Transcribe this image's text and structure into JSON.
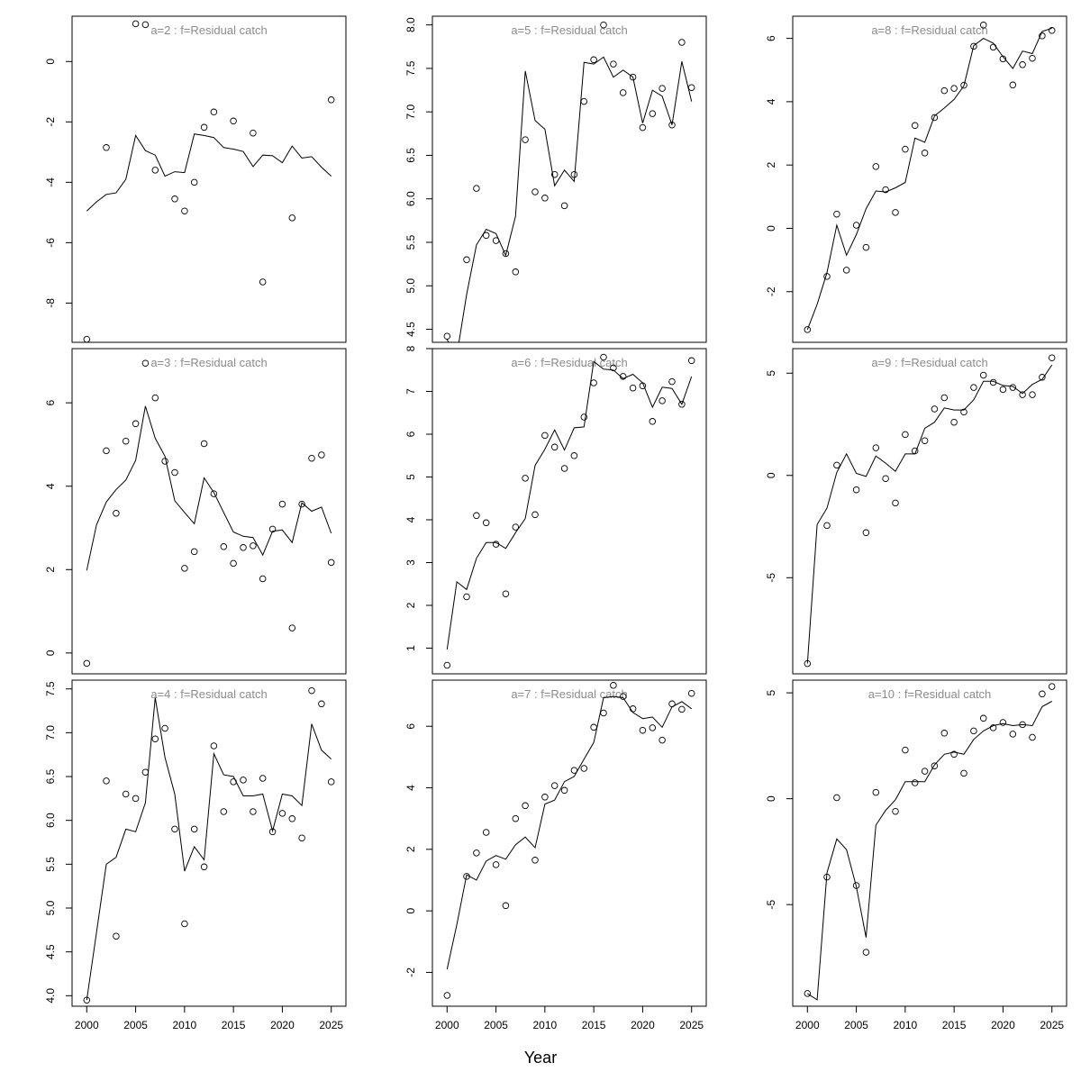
{
  "figure": {
    "xlabel": "Year",
    "x_ticks": [
      2000,
      2005,
      2010,
      2015,
      2020,
      2025
    ]
  },
  "chart_data": [
    {
      "type": "scatter",
      "title": "a=2  :  f=Residual catch",
      "ylim": [
        -9.3,
        1.5
      ],
      "y_ticks": [
        0,
        -2,
        -4,
        -6,
        -8
      ],
      "x": [
        2000,
        2001,
        2002,
        2003,
        2004,
        2005,
        2006,
        2007,
        2008,
        2009,
        2010,
        2011,
        2012,
        2013,
        2014,
        2015,
        2016,
        2017,
        2018,
        2019,
        2020,
        2021,
        2022,
        2023,
        2024,
        2025
      ],
      "series": [
        {
          "type": "points",
          "values": [
            -9.2,
            null,
            -2.85,
            null,
            null,
            1.25,
            1.22,
            -3.6,
            null,
            -4.55,
            -4.95,
            -4.0,
            -2.18,
            -1.67,
            null,
            -1.97,
            null,
            -2.37,
            -7.3,
            null,
            null,
            -5.18,
            null,
            null,
            null,
            -1.27
          ]
        },
        {
          "type": "line",
          "values": [
            -4.95,
            -4.65,
            -4.4,
            -4.35,
            -3.9,
            -2.45,
            -2.95,
            -3.1,
            -3.8,
            -3.65,
            -3.68,
            -2.4,
            -2.45,
            -2.52,
            -2.85,
            -2.9,
            -2.98,
            -3.48,
            -3.1,
            -3.12,
            -3.35,
            -2.8,
            -3.2,
            -3.15,
            -3.5,
            -3.8
          ]
        }
      ]
    },
    {
      "type": "scatter",
      "title": "a=3  :  f=Residual catch",
      "ylim": [
        -0.5,
        7.3
      ],
      "y_ticks": [
        0,
        2,
        4,
        6
      ],
      "x": [
        2000,
        2001,
        2002,
        2003,
        2004,
        2005,
        2006,
        2007,
        2008,
        2009,
        2010,
        2011,
        2012,
        2013,
        2014,
        2015,
        2016,
        2017,
        2018,
        2019,
        2020,
        2021,
        2022,
        2023,
        2024,
        2025
      ],
      "series": [
        {
          "type": "points",
          "values": [
            -0.25,
            null,
            4.85,
            3.35,
            5.08,
            5.5,
            6.95,
            6.12,
            4.6,
            4.33,
            2.03,
            2.43,
            5.02,
            3.82,
            2.55,
            2.15,
            2.53,
            2.57,
            1.78,
            2.97,
            3.57,
            0.6,
            3.57,
            4.67,
            4.75,
            2.17
          ]
        },
        {
          "type": "line",
          "values": [
            1.98,
            3.07,
            3.62,
            3.92,
            4.15,
            4.62,
            5.92,
            5.15,
            4.72,
            3.65,
            3.37,
            3.1,
            4.2,
            3.85,
            3.37,
            2.9,
            2.8,
            2.77,
            2.35,
            2.92,
            2.95,
            2.65,
            3.6,
            3.4,
            3.5,
            2.87
          ]
        }
      ]
    },
    {
      "type": "scatter",
      "title": "a=4  :  f=Residual catch",
      "ylim": [
        3.88,
        7.6
      ],
      "y_ticks": [
        4.0,
        4.5,
        5.0,
        5.5,
        6.0,
        6.5,
        7.0,
        7.5
      ],
      "x": [
        2000,
        2001,
        2002,
        2003,
        2004,
        2005,
        2006,
        2007,
        2008,
        2009,
        2010,
        2011,
        2012,
        2013,
        2014,
        2015,
        2016,
        2017,
        2018,
        2019,
        2020,
        2021,
        2022,
        2023,
        2024,
        2025
      ],
      "series": [
        {
          "type": "points",
          "values": [
            3.95,
            null,
            6.45,
            4.68,
            6.3,
            6.25,
            6.55,
            6.93,
            7.05,
            5.9,
            4.82,
            5.9,
            5.47,
            6.85,
            6.1,
            6.44,
            6.46,
            6.1,
            6.48,
            5.87,
            6.08,
            6.02,
            5.8,
            7.48,
            7.33,
            6.44
          ]
        },
        {
          "type": "line",
          "values": [
            3.95,
            4.72,
            5.5,
            5.58,
            5.9,
            5.87,
            6.2,
            7.4,
            6.72,
            6.3,
            5.42,
            5.7,
            5.55,
            6.76,
            6.52,
            6.5,
            6.28,
            6.28,
            6.3,
            5.88,
            6.3,
            6.28,
            6.17,
            7.1,
            6.8,
            6.7
          ]
        }
      ]
    },
    {
      "type": "scatter",
      "title": "a=5  :  f=Residual catch",
      "ylim": [
        4.35,
        8.1
      ],
      "y_ticks": [
        4.5,
        5.0,
        5.5,
        6.0,
        6.5,
        7.0,
        7.5,
        8.0
      ],
      "x": [
        2000,
        2001,
        2002,
        2003,
        2004,
        2005,
        2006,
        2007,
        2008,
        2009,
        2010,
        2011,
        2012,
        2013,
        2014,
        2015,
        2016,
        2017,
        2018,
        2019,
        2020,
        2021,
        2022,
        2023,
        2024,
        2025
      ],
      "series": [
        {
          "type": "points",
          "values": [
            4.42,
            null,
            5.3,
            6.12,
            5.58,
            5.52,
            5.37,
            5.16,
            6.68,
            6.08,
            6.01,
            6.28,
            5.92,
            6.28,
            7.12,
            7.6,
            8.0,
            7.55,
            7.22,
            7.4,
            6.82,
            6.98,
            7.27,
            6.85,
            7.8,
            7.28
          ]
        },
        {
          "type": "line",
          "values": [
            4.38,
            4.2,
            4.9,
            5.47,
            5.65,
            5.6,
            5.35,
            5.8,
            7.47,
            6.9,
            6.8,
            6.15,
            6.33,
            6.2,
            7.57,
            7.55,
            7.63,
            7.4,
            7.48,
            7.4,
            6.87,
            7.25,
            7.18,
            6.85,
            7.58,
            7.12
          ]
        }
      ]
    },
    {
      "type": "scatter",
      "title": "a=6  :  f=Residual catch",
      "ylim": [
        0.4,
        8.0
      ],
      "y_ticks": [
        1,
        2,
        3,
        4,
        5,
        6,
        7,
        8
      ],
      "x": [
        2000,
        2001,
        2002,
        2003,
        2004,
        2005,
        2006,
        2007,
        2008,
        2009,
        2010,
        2011,
        2012,
        2013,
        2014,
        2015,
        2016,
        2017,
        2018,
        2019,
        2020,
        2021,
        2022,
        2023,
        2024,
        2025
      ],
      "series": [
        {
          "type": "points",
          "values": [
            0.6,
            null,
            2.2,
            4.1,
            3.93,
            3.43,
            2.27,
            3.83,
            4.97,
            4.12,
            5.97,
            5.7,
            5.2,
            5.5,
            6.4,
            7.2,
            7.8,
            7.55,
            7.35,
            7.08,
            7.13,
            6.3,
            6.78,
            7.23,
            6.7,
            7.72
          ]
        },
        {
          "type": "line",
          "values": [
            0.97,
            2.55,
            2.37,
            3.1,
            3.47,
            3.47,
            3.33,
            3.7,
            4.03,
            5.27,
            5.65,
            6.1,
            5.63,
            6.15,
            6.17,
            7.7,
            7.52,
            7.5,
            7.3,
            7.4,
            7.2,
            6.63,
            7.1,
            7.07,
            6.7,
            7.35
          ]
        }
      ]
    },
    {
      "type": "scatter",
      "title": "a=7  :  f=Residual catch",
      "ylim": [
        -3.1,
        7.5
      ],
      "y_ticks": [
        -2,
        0,
        2,
        4,
        6
      ],
      "x": [
        2000,
        2001,
        2002,
        2003,
        2004,
        2005,
        2006,
        2007,
        2008,
        2009,
        2010,
        2011,
        2012,
        2013,
        2014,
        2015,
        2016,
        2017,
        2018,
        2019,
        2020,
        2021,
        2022,
        2023,
        2024,
        2025
      ],
      "series": [
        {
          "type": "points",
          "values": [
            -2.75,
            null,
            1.12,
            1.88,
            2.55,
            1.5,
            0.17,
            3.0,
            3.42,
            1.65,
            3.7,
            4.07,
            3.92,
            4.57,
            4.63,
            5.97,
            6.43,
            7.33,
            6.97,
            6.57,
            5.87,
            5.95,
            5.55,
            6.73,
            6.55,
            7.07
          ]
        },
        {
          "type": "line",
          "values": [
            -1.9,
            -0.45,
            1.17,
            1.0,
            1.62,
            1.8,
            1.68,
            2.15,
            2.4,
            2.05,
            3.47,
            3.6,
            4.2,
            4.37,
            4.93,
            5.47,
            6.93,
            6.97,
            6.93,
            6.45,
            6.25,
            6.3,
            5.97,
            6.63,
            6.8,
            6.57
          ]
        }
      ]
    },
    {
      "type": "scatter",
      "title": "a=8  :  f=Residual catch",
      "ylim": [
        -3.6,
        6.7
      ],
      "y_ticks": [
        -2,
        0,
        2,
        4,
        6
      ],
      "x": [
        2000,
        2001,
        2002,
        2003,
        2004,
        2005,
        2006,
        2007,
        2008,
        2009,
        2010,
        2011,
        2012,
        2013,
        2014,
        2015,
        2016,
        2017,
        2018,
        2019,
        2020,
        2021,
        2022,
        2023,
        2024,
        2025
      ],
      "series": [
        {
          "type": "points",
          "values": [
            -3.2,
            null,
            -1.52,
            0.45,
            -1.32,
            0.1,
            -0.6,
            1.95,
            1.22,
            0.5,
            2.5,
            3.25,
            2.38,
            3.5,
            4.35,
            4.42,
            4.52,
            5.75,
            6.42,
            5.72,
            5.35,
            4.53,
            5.17,
            5.37,
            6.08,
            6.25
          ]
        },
        {
          "type": "line",
          "values": [
            -3.2,
            -2.4,
            -1.4,
            0.1,
            -0.85,
            -0.2,
            0.62,
            1.18,
            1.15,
            1.28,
            1.45,
            2.85,
            2.72,
            3.55,
            3.8,
            4.07,
            4.5,
            5.77,
            6.0,
            5.85,
            5.42,
            5.05,
            5.6,
            5.52,
            6.22,
            6.32
          ]
        }
      ]
    },
    {
      "type": "scatter",
      "title": "a=9  :  f=Residual catch",
      "ylim": [
        -9.7,
        6.2
      ],
      "y_ticks": [
        5,
        0,
        -5
      ],
      "x": [
        2000,
        2001,
        2002,
        2003,
        2004,
        2005,
        2006,
        2007,
        2008,
        2009,
        2010,
        2011,
        2012,
        2013,
        2014,
        2015,
        2016,
        2017,
        2018,
        2019,
        2020,
        2021,
        2022,
        2023,
        2024,
        2025
      ],
      "series": [
        {
          "type": "points",
          "values": [
            -9.2,
            null,
            -2.45,
            0.5,
            null,
            -0.7,
            -2.8,
            1.35,
            -0.15,
            -1.35,
            2.0,
            1.2,
            1.7,
            3.25,
            3.8,
            2.6,
            3.1,
            4.3,
            4.9,
            4.55,
            4.2,
            4.3,
            3.95,
            3.95,
            4.8,
            5.75
          ]
        },
        {
          "type": "line",
          "values": [
            -9.2,
            -2.4,
            -1.6,
            0.15,
            1.05,
            0.1,
            -0.05,
            0.95,
            0.6,
            0.2,
            1.05,
            1.05,
            2.3,
            2.6,
            3.3,
            3.2,
            3.2,
            3.7,
            4.6,
            4.6,
            4.4,
            4.35,
            4.0,
            4.45,
            4.7,
            5.4
          ]
        }
      ]
    },
    {
      "type": "scatter",
      "title": "a=10  :  f=Residual catch",
      "ylim": [
        -9.8,
        5.6
      ],
      "y_ticks": [
        5,
        0,
        -5
      ],
      "x": [
        2000,
        2001,
        2002,
        2003,
        2004,
        2005,
        2006,
        2007,
        2008,
        2009,
        2010,
        2011,
        2012,
        2013,
        2014,
        2015,
        2016,
        2017,
        2018,
        2019,
        2020,
        2021,
        2022,
        2023,
        2024,
        2025
      ],
      "series": [
        {
          "type": "points",
          "values": [
            -9.2,
            null,
            -3.7,
            0.05,
            null,
            -4.1,
            -7.25,
            0.3,
            null,
            -0.6,
            2.3,
            0.75,
            1.3,
            1.55,
            3.1,
            2.1,
            1.2,
            3.2,
            3.8,
            3.35,
            3.6,
            3.05,
            3.5,
            2.9,
            4.95,
            5.3
          ]
        },
        {
          "type": "line",
          "values": [
            -9.2,
            -9.5,
            -3.5,
            -1.9,
            -2.4,
            -4.15,
            -6.55,
            -1.25,
            -0.55,
            -0.05,
            0.8,
            0.8,
            0.8,
            1.6,
            2.1,
            2.2,
            2.1,
            2.8,
            3.2,
            3.45,
            3.55,
            3.45,
            3.5,
            3.45,
            4.35,
            4.6
          ]
        }
      ]
    }
  ]
}
